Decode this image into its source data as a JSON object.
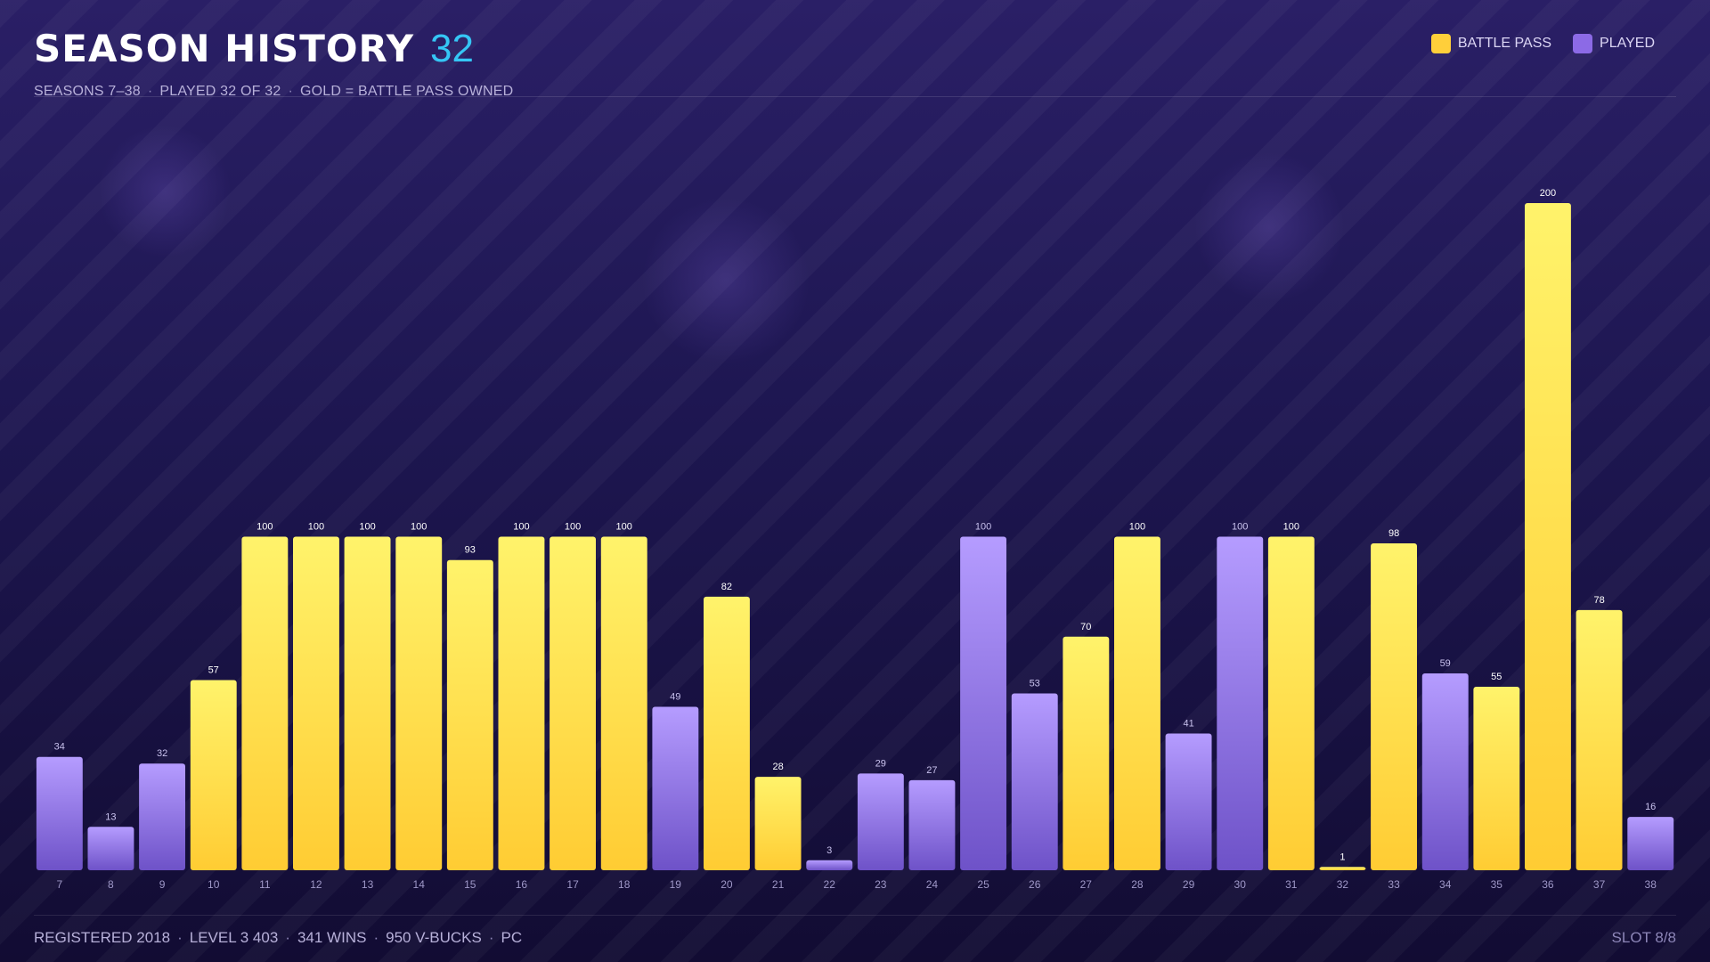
{
  "header": {
    "title": "SEASON HISTORY",
    "count": "32",
    "subtitle_parts": [
      "SEASONS 7–38",
      "PLAYED 32 OF 32",
      "GOLD = BATTLE PASS OWNED"
    ]
  },
  "legend": [
    {
      "label": "BATTLE PASS",
      "color": "#ffcf3a"
    },
    {
      "label": "PLAYED",
      "color": "#8c6ae6"
    }
  ],
  "footer": {
    "parts": [
      "REGISTERED 2018",
      "LEVEL 3 403",
      "341 WINS",
      "950 V-BUCKS",
      "PC"
    ],
    "slot": "SLOT 8/8"
  },
  "colors": {
    "accent": "#35c6f5",
    "battle_pass_top": "#fff36b",
    "battle_pass_bottom": "#ffcc33",
    "played_top": "#b59cff",
    "played_bottom": "#6e52c8"
  },
  "chart_data": {
    "type": "bar",
    "categories": [
      "7",
      "8",
      "9",
      "10",
      "11",
      "12",
      "13",
      "14",
      "15",
      "16",
      "17",
      "18",
      "19",
      "20",
      "21",
      "22",
      "23",
      "24",
      "25",
      "26",
      "27",
      "28",
      "29",
      "30",
      "31",
      "32",
      "33",
      "34",
      "35",
      "36",
      "37",
      "38"
    ],
    "values": [
      34,
      13,
      32,
      57,
      100,
      100,
      100,
      100,
      93,
      100,
      100,
      100,
      49,
      82,
      28,
      3,
      29,
      27,
      100,
      53,
      70,
      100,
      41,
      100,
      100,
      1,
      98,
      59,
      55,
      200,
      78,
      16
    ],
    "battle_pass": [
      false,
      false,
      false,
      true,
      true,
      true,
      true,
      true,
      true,
      true,
      true,
      true,
      false,
      true,
      true,
      false,
      false,
      false,
      false,
      false,
      true,
      true,
      false,
      false,
      true,
      true,
      true,
      false,
      true,
      true,
      true,
      false
    ],
    "series": [
      {
        "name": "BATTLE PASS",
        "color": "#ffcf3a"
      },
      {
        "name": "PLAYED",
        "color": "#8c6ae6"
      }
    ],
    "ylim": [
      0,
      200
    ],
    "grid": false,
    "legend_position": "top-right"
  }
}
